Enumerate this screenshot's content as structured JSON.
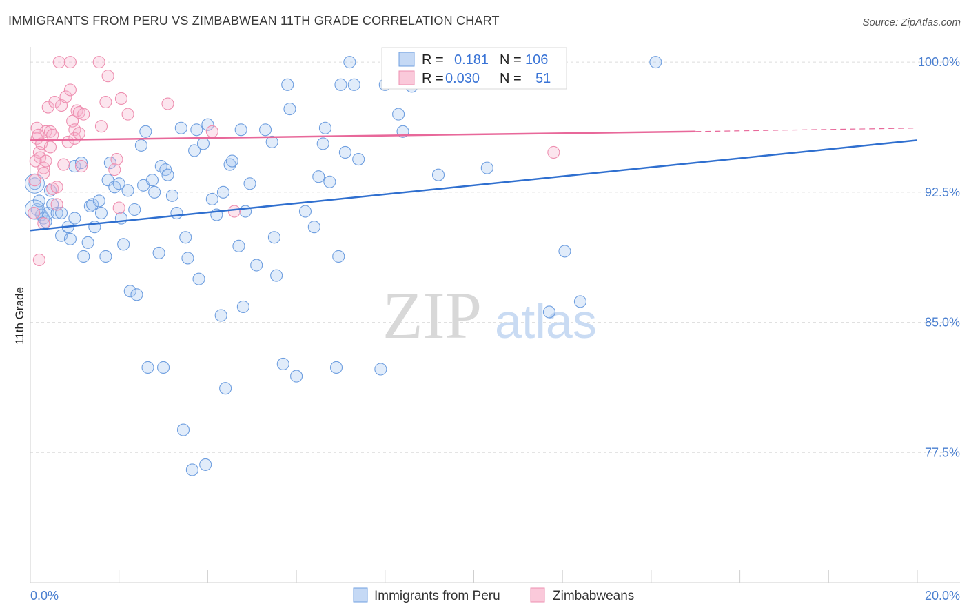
{
  "title": "IMMIGRANTS FROM PERU VS ZIMBABWEAN 11TH GRADE CORRELATION CHART",
  "source": "Source: ZipAtlas.com",
  "watermark": {
    "zip": "ZIP",
    "atlas": "atlas"
  },
  "colors": {
    "blue": "#6f9fe0",
    "blue_line": "#2f6fcf",
    "pink": "#ee8fb0",
    "pink_line": "#e8689a",
    "axis_text": "#4a7fd0",
    "grid": "#dcdcdc"
  },
  "stats": {
    "rows": [
      {
        "r_label": "R =",
        "r_value": "0.181",
        "n_label": "N =",
        "n_value": "106",
        "color": "blue"
      },
      {
        "r_label": "R =",
        "r_value": "0.030",
        "n_label": "N =",
        "n_value": "51",
        "color": "pink"
      }
    ]
  },
  "legend": [
    {
      "label": "Immigrants from Peru",
      "color": "blue"
    },
    {
      "label": "Zimbabweans",
      "color": "pink"
    }
  ],
  "chart_data": {
    "type": "scatter",
    "title": "IMMIGRANTS FROM PERU VS ZIMBABWEAN 11TH GRADE CORRELATION CHART",
    "xlabel": "",
    "ylabel": "11th Grade",
    "xlim": [
      0,
      20
    ],
    "ylim": [
      70.0,
      100.8
    ],
    "x_tick_labels": [
      "0.0%",
      "20.0%"
    ],
    "y_ticks": [
      77.5,
      85.0,
      92.5,
      100.0
    ],
    "y_tick_labels": [
      "77.5%",
      "85.0%",
      "92.5%",
      "100.0%"
    ],
    "grid": true,
    "legend_position": "bottom",
    "series": [
      {
        "name": "Immigrants from Peru",
        "color": "blue",
        "trend": {
          "x": [
            0,
            20
          ],
          "y": [
            90.3,
            95.5
          ]
        },
        "points": [
          [
            0.1,
            93.0
          ],
          [
            0.15,
            91.5
          ],
          [
            0.2,
            92.0
          ],
          [
            0.25,
            91.2
          ],
          [
            0.3,
            91.0
          ],
          [
            0.35,
            90.8
          ],
          [
            0.4,
            91.3
          ],
          [
            0.45,
            92.6
          ],
          [
            0.5,
            91.8
          ],
          [
            0.6,
            91.3
          ],
          [
            0.7,
            91.3
          ],
          [
            0.7,
            90.0
          ],
          [
            0.85,
            90.5
          ],
          [
            0.9,
            89.8
          ],
          [
            1.0,
            91.0
          ],
          [
            1.0,
            94.0
          ],
          [
            1.15,
            94.2
          ],
          [
            1.2,
            88.8
          ],
          [
            1.3,
            89.6
          ],
          [
            1.35,
            91.7
          ],
          [
            1.4,
            91.8
          ],
          [
            1.45,
            90.5
          ],
          [
            1.55,
            92.0
          ],
          [
            1.6,
            91.3
          ],
          [
            1.7,
            88.8
          ],
          [
            1.75,
            93.2
          ],
          [
            1.8,
            94.2
          ],
          [
            1.9,
            92.8
          ],
          [
            2.0,
            93.0
          ],
          [
            2.05,
            91.0
          ],
          [
            2.1,
            89.5
          ],
          [
            2.2,
            92.6
          ],
          [
            2.25,
            86.8
          ],
          [
            2.35,
            91.5
          ],
          [
            2.4,
            86.6
          ],
          [
            2.5,
            95.2
          ],
          [
            2.55,
            92.9
          ],
          [
            2.6,
            96.0
          ],
          [
            2.65,
            82.4
          ],
          [
            2.75,
            93.2
          ],
          [
            2.8,
            92.5
          ],
          [
            2.9,
            89.0
          ],
          [
            2.95,
            94.0
          ],
          [
            3.0,
            82.4
          ],
          [
            3.05,
            93.8
          ],
          [
            3.1,
            93.5
          ],
          [
            3.2,
            92.3
          ],
          [
            3.3,
            91.3
          ],
          [
            3.4,
            96.2
          ],
          [
            3.45,
            78.8
          ],
          [
            3.5,
            89.9
          ],
          [
            3.55,
            88.7
          ],
          [
            3.65,
            76.5
          ],
          [
            3.7,
            94.9
          ],
          [
            3.75,
            96.1
          ],
          [
            3.8,
            87.5
          ],
          [
            3.9,
            95.3
          ],
          [
            3.95,
            76.8
          ],
          [
            4.0,
            96.4
          ],
          [
            4.1,
            92.1
          ],
          [
            4.2,
            91.2
          ],
          [
            4.3,
            85.4
          ],
          [
            4.35,
            92.5
          ],
          [
            4.4,
            81.2
          ],
          [
            4.5,
            94.1
          ],
          [
            4.55,
            94.3
          ],
          [
            4.7,
            89.4
          ],
          [
            4.75,
            96.1
          ],
          [
            4.8,
            85.9
          ],
          [
            4.85,
            91.4
          ],
          [
            4.95,
            93.0
          ],
          [
            5.1,
            88.3
          ],
          [
            5.3,
            96.1
          ],
          [
            5.45,
            95.4
          ],
          [
            5.5,
            89.9
          ],
          [
            5.55,
            87.7
          ],
          [
            5.7,
            82.6
          ],
          [
            5.8,
            98.7
          ],
          [
            5.85,
            97.3
          ],
          [
            6.0,
            81.9
          ],
          [
            6.2,
            91.4
          ],
          [
            6.4,
            90.5
          ],
          [
            6.5,
            93.4
          ],
          [
            6.6,
            95.3
          ],
          [
            6.65,
            96.2
          ],
          [
            6.75,
            93.1
          ],
          [
            6.9,
            82.4
          ],
          [
            6.95,
            88.8
          ],
          [
            7.0,
            98.7
          ],
          [
            7.1,
            94.8
          ],
          [
            7.2,
            100.0
          ],
          [
            7.4,
            94.4
          ],
          [
            7.9,
            82.3
          ],
          [
            8.0,
            98.7
          ],
          [
            8.3,
            97.0
          ],
          [
            8.4,
            96.0
          ],
          [
            8.5,
            100.0
          ],
          [
            9.2,
            93.5
          ],
          [
            10.1,
            99.9
          ],
          [
            10.3,
            93.9
          ],
          [
            11.7,
            85.6
          ],
          [
            12.05,
            89.1
          ],
          [
            12.4,
            86.2
          ],
          [
            14.1,
            100.0
          ],
          [
            8.6,
            98.6
          ],
          [
            7.3,
            98.7
          ]
        ]
      },
      {
        "name": "Zimbabweans",
        "color": "pink",
        "trend": {
          "x": [
            0,
            15
          ],
          "y": [
            95.5,
            96.0
          ]
        },
        "trend_dashed": {
          "x": [
            15,
            20
          ],
          "y": [
            96.0,
            96.2
          ]
        },
        "points": [
          [
            0.1,
            93.2
          ],
          [
            0.12,
            94.3
          ],
          [
            0.15,
            95.6
          ],
          [
            0.15,
            96.2
          ],
          [
            0.2,
            94.8
          ],
          [
            0.2,
            88.6
          ],
          [
            0.22,
            94.5
          ],
          [
            0.25,
            95.3
          ],
          [
            0.3,
            93.9
          ],
          [
            0.3,
            90.7
          ],
          [
            0.35,
            96.0
          ],
          [
            0.35,
            94.3
          ],
          [
            0.4,
            97.4
          ],
          [
            0.45,
            96.0
          ],
          [
            0.45,
            95.1
          ],
          [
            0.5,
            95.8
          ],
          [
            0.5,
            92.7
          ],
          [
            0.55,
            97.7
          ],
          [
            0.6,
            92.8
          ],
          [
            0.6,
            91.8
          ],
          [
            0.65,
            100.0
          ],
          [
            0.7,
            97.5
          ],
          [
            0.75,
            94.1
          ],
          [
            0.8,
            98.0
          ],
          [
            0.85,
            95.4
          ],
          [
            0.9,
            100.0
          ],
          [
            0.9,
            98.4
          ],
          [
            0.95,
            96.6
          ],
          [
            1.0,
            96.1
          ],
          [
            1.0,
            95.6
          ],
          [
            1.05,
            97.2
          ],
          [
            1.1,
            97.1
          ],
          [
            1.1,
            95.9
          ],
          [
            1.15,
            94.0
          ],
          [
            1.2,
            97.0
          ],
          [
            1.55,
            100.0
          ],
          [
            1.6,
            96.3
          ],
          [
            1.7,
            97.7
          ],
          [
            1.75,
            99.2
          ],
          [
            1.9,
            93.8
          ],
          [
            1.95,
            94.4
          ],
          [
            2.0,
            91.6
          ],
          [
            2.05,
            97.9
          ],
          [
            2.2,
            97.0
          ],
          [
            3.1,
            97.6
          ],
          [
            4.1,
            96.0
          ],
          [
            4.6,
            91.4
          ],
          [
            11.8,
            94.8
          ],
          [
            0.08,
            91.3
          ],
          [
            0.3,
            93.6
          ],
          [
            0.18,
            95.8
          ]
        ]
      }
    ]
  }
}
